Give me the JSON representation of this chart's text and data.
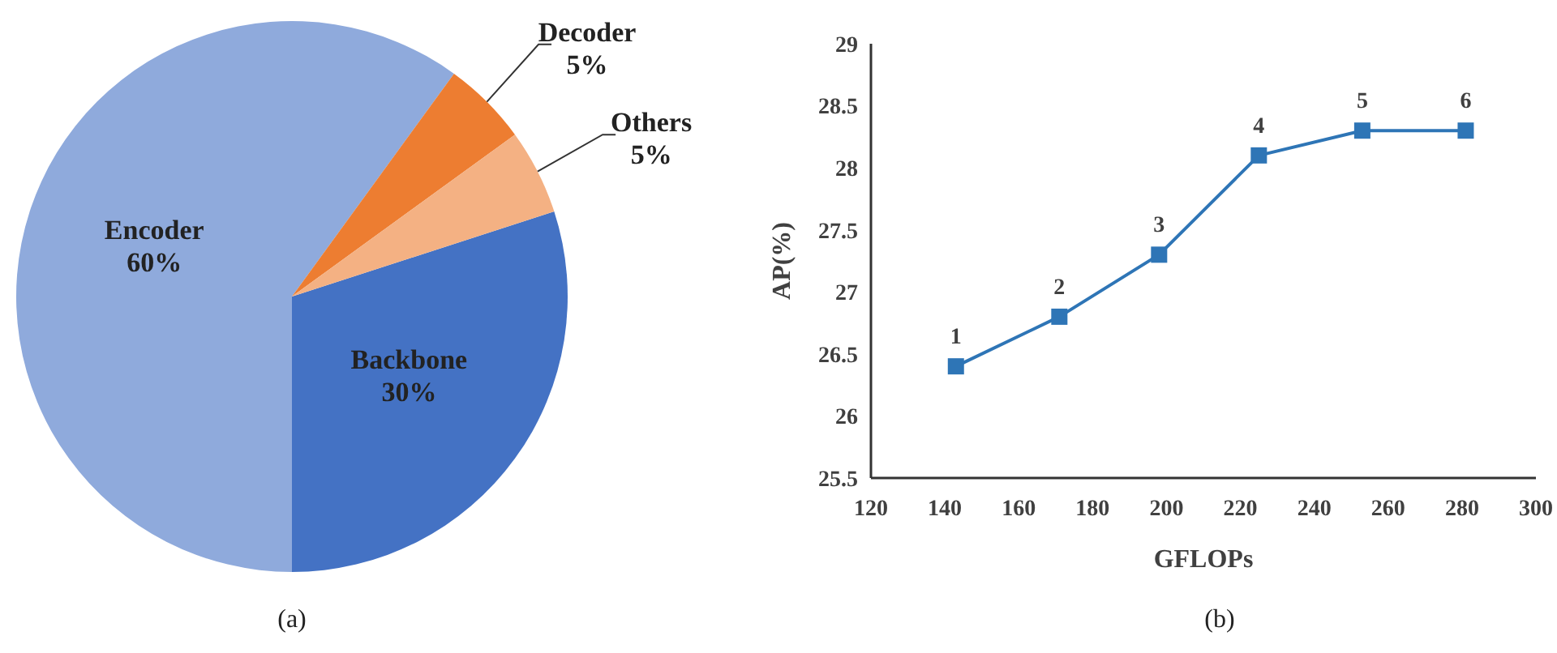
{
  "chart_data": [
    {
      "type": "pie",
      "categories": [
        "Backbone",
        "Encoder",
        "Decoder",
        "Others"
      ],
      "values": [
        30,
        60,
        5,
        5
      ],
      "colors": [
        "#4472c4",
        "#8faadc",
        "#ed7d31",
        "#f4b183"
      ],
      "value_labels": [
        "30%",
        "60%",
        "5%",
        "5%"
      ],
      "annotations": [
        "(a)"
      ]
    },
    {
      "type": "line",
      "x": [
        143,
        171,
        198,
        225,
        253,
        281
      ],
      "values": [
        26.4,
        26.8,
        27.3,
        28.1,
        28.3,
        28.3
      ],
      "color": "#2e75b6",
      "marker": "square",
      "xlabel": "GFLOPs",
      "ylabel": "AP(%)",
      "xlim": [
        120,
        300
      ],
      "xticks": [
        120,
        140,
        160,
        180,
        200,
        220,
        240,
        260,
        280,
        300
      ],
      "ylim": [
        25.5,
        29
      ],
      "yticks": [
        25.5,
        26,
        26.5,
        27,
        27.5,
        28,
        28.5,
        29
      ],
      "grid": false,
      "annotations": [
        {
          "text": "1",
          "x": 143,
          "y": 26.4
        },
        {
          "text": "2",
          "x": 171,
          "y": 26.8
        },
        {
          "text": "3",
          "x": 198,
          "y": 27.3
        },
        {
          "text": "4",
          "x": 225,
          "y": 28.1
        },
        {
          "text": "5",
          "x": 253,
          "y": 28.3
        },
        {
          "text": "6",
          "x": 281,
          "y": 28.3
        },
        "(b)"
      ]
    }
  ]
}
